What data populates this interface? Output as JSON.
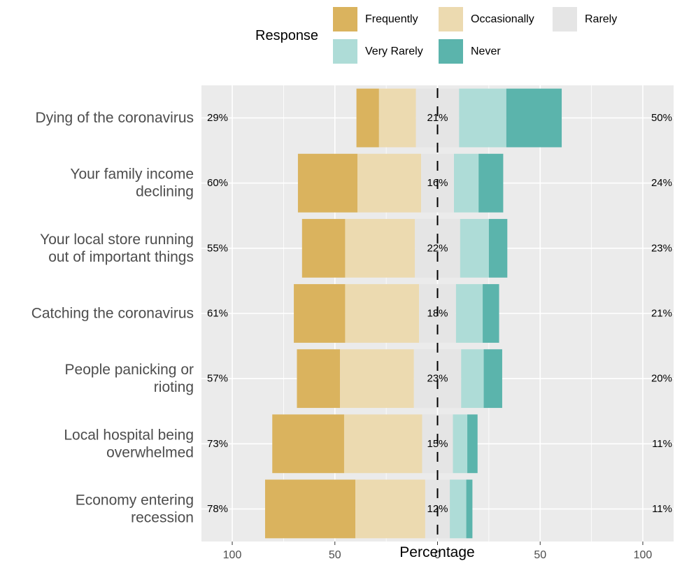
{
  "chart_data": {
    "type": "bar",
    "orientation": "horizontal",
    "stacked": "diverging",
    "legend": {
      "title": "Response",
      "position": "top"
    },
    "xlabel": "Percentage",
    "ylabel": "",
    "xlim": [
      -115,
      115
    ],
    "x_ticks": [
      {
        "value": -100,
        "label": "100"
      },
      {
        "value": -50,
        "label": "50"
      },
      {
        "value": 0,
        "label": "0"
      },
      {
        "value": 50,
        "label": "50"
      },
      {
        "value": 100,
        "label": "100"
      }
    ],
    "grid": true,
    "categories": [
      [
        "Dying of the coronavirus"
      ],
      [
        "Your family income",
        "declining"
      ],
      [
        "Your local store running",
        "out of important things"
      ],
      [
        "Catching the coronavirus"
      ],
      [
        "People panicking or",
        "rioting"
      ],
      [
        "Local hospital being",
        "overwhelmed"
      ],
      [
        "Economy entering",
        "recession"
      ]
    ],
    "series": [
      {
        "name": "Frequently",
        "color": "#DAB35E",
        "values": [
          11,
          29,
          21,
          25,
          21,
          35,
          44
        ]
      },
      {
        "name": "Occasionally",
        "color": "#ECDAB0",
        "values": [
          18,
          31,
          34,
          36,
          36,
          38,
          34
        ]
      },
      {
        "name": "Rarely",
        "color": "#E5E5E5",
        "values": [
          21,
          16,
          22,
          18,
          23,
          15,
          12
        ]
      },
      {
        "name": "Very Rarely",
        "color": "#AEDCD7",
        "values": [
          23,
          12,
          14,
          13,
          11,
          7,
          8
        ]
      },
      {
        "name": "Never",
        "color": "#5BB4AC",
        "values": [
          27,
          12,
          9,
          8,
          9,
          5,
          3
        ]
      }
    ],
    "left_labels": [
      "29%",
      "60%",
      "55%",
      "61%",
      "57%",
      "73%",
      "78%"
    ],
    "center_labels": [
      "21%",
      "16%",
      "22%",
      "18%",
      "23%",
      "15%",
      "12%"
    ],
    "right_labels": [
      "50%",
      "24%",
      "23%",
      "21%",
      "20%",
      "11%",
      "11%"
    ]
  }
}
